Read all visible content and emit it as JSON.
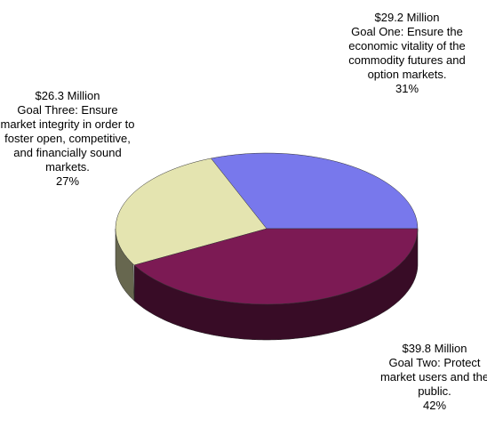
{
  "chart_data": {
    "type": "pie",
    "categories": [
      "Goal One:  Ensure the economic vitality of the commodity futures and option markets.",
      "Goal Three: Ensure market integrity in order to foster open, competitive, and financially sound markets.",
      "Goal Two:  Protect market users and the public."
    ],
    "amount_labels": [
      "$29.2 Million",
      "$26.3 Million",
      "$39.8 Million"
    ],
    "values": [
      31,
      27,
      42
    ],
    "value_labels": [
      "31%",
      "27%",
      "42%"
    ],
    "colors": [
      "#7878ec",
      "#e4e4b0",
      "#7c1a54"
    ]
  }
}
